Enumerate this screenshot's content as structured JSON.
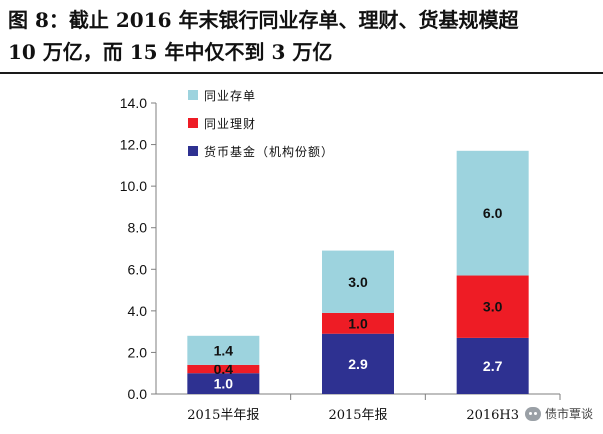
{
  "title": {
    "line1": "图 8：截止 2016 年末银行同业存单、理财、货基规模超",
    "line2": "10 万亿，而 15 年中仅不到 3 万亿"
  },
  "watermark": {
    "text": "债市覃谈"
  },
  "chart_data": {
    "type": "bar",
    "stacked": true,
    "categories": [
      "2015半年报",
      "2015年报",
      "2016H3"
    ],
    "series": [
      {
        "name": "货币基金（机构份额）",
        "values": [
          1.0,
          2.9,
          2.7
        ],
        "color": "#2e3191",
        "label_color": "#ffffff"
      },
      {
        "name": "同业理财",
        "values": [
          0.4,
          1.0,
          3.0
        ],
        "color": "#ee1c25",
        "label_color": "#1a1a1a"
      },
      {
        "name": "同业存单",
        "values": [
          1.4,
          3.0,
          6.0
        ],
        "color": "#9dd3de",
        "label_color": "#1a1a1a"
      }
    ],
    "y_ticks": [
      "0.0",
      "2.0",
      "4.0",
      "6.0",
      "8.0",
      "10.0",
      "12.0",
      "14.0"
    ],
    "ylim": [
      0,
      14
    ],
    "xlabel": "",
    "ylabel": "",
    "legend": [
      "同业存单",
      "同业理财",
      "货币基金（机构份额）"
    ],
    "legend_position": "top-left"
  }
}
